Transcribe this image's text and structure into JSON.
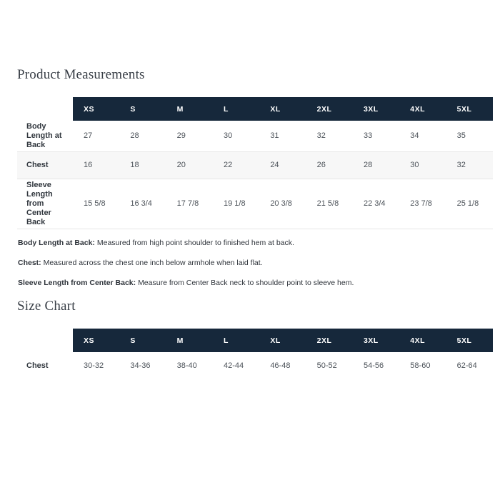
{
  "colors": {
    "header_bg": "#16283b",
    "header_text": "#ffffff",
    "stripe_bg": "#f7f7f7",
    "row_border": "#e6e6e6",
    "label_text": "#32383f",
    "value_text": "#4d535a",
    "title_text": "#383e46",
    "note_text": "#2f343b",
    "page_bg": "#ffffff"
  },
  "product_measurements": {
    "title": "Product Measurements",
    "columns": [
      "XS",
      "S",
      "M",
      "L",
      "XL",
      "2XL",
      "3XL",
      "4XL",
      "5XL"
    ],
    "rows": [
      {
        "label": "Body Length at Back",
        "values": [
          "27",
          "28",
          "29",
          "30",
          "31",
          "32",
          "33",
          "34",
          "35"
        ]
      },
      {
        "label": "Chest",
        "values": [
          "16",
          "18",
          "20",
          "22",
          "24",
          "26",
          "28",
          "30",
          "32"
        ]
      },
      {
        "label": "Sleeve Length from Center Back",
        "values": [
          "15 5/8",
          "16 3/4",
          "17 7/8",
          "19 1/8",
          "20 3/8",
          "21 5/8",
          "22 3/4",
          "23 7/8",
          "25 1/8"
        ]
      }
    ],
    "notes": [
      {
        "term": "Body Length at Back:",
        "definition": "Measured from high point shoulder to finished hem at back."
      },
      {
        "term": "Chest:",
        "definition": "Measured across the chest one inch below armhole when laid flat."
      },
      {
        "term": "Sleeve Length from Center Back:",
        "definition": "Measure from Center Back neck to shoulder point to sleeve hem."
      }
    ]
  },
  "size_chart": {
    "title": "Size Chart",
    "columns": [
      "XS",
      "S",
      "M",
      "L",
      "XL",
      "2XL",
      "3XL",
      "4XL",
      "5XL"
    ],
    "rows": [
      {
        "label": "Chest",
        "values": [
          "30-32",
          "34-36",
          "38-40",
          "42-44",
          "46-48",
          "50-52",
          "54-56",
          "58-60",
          "62-64"
        ]
      }
    ]
  }
}
